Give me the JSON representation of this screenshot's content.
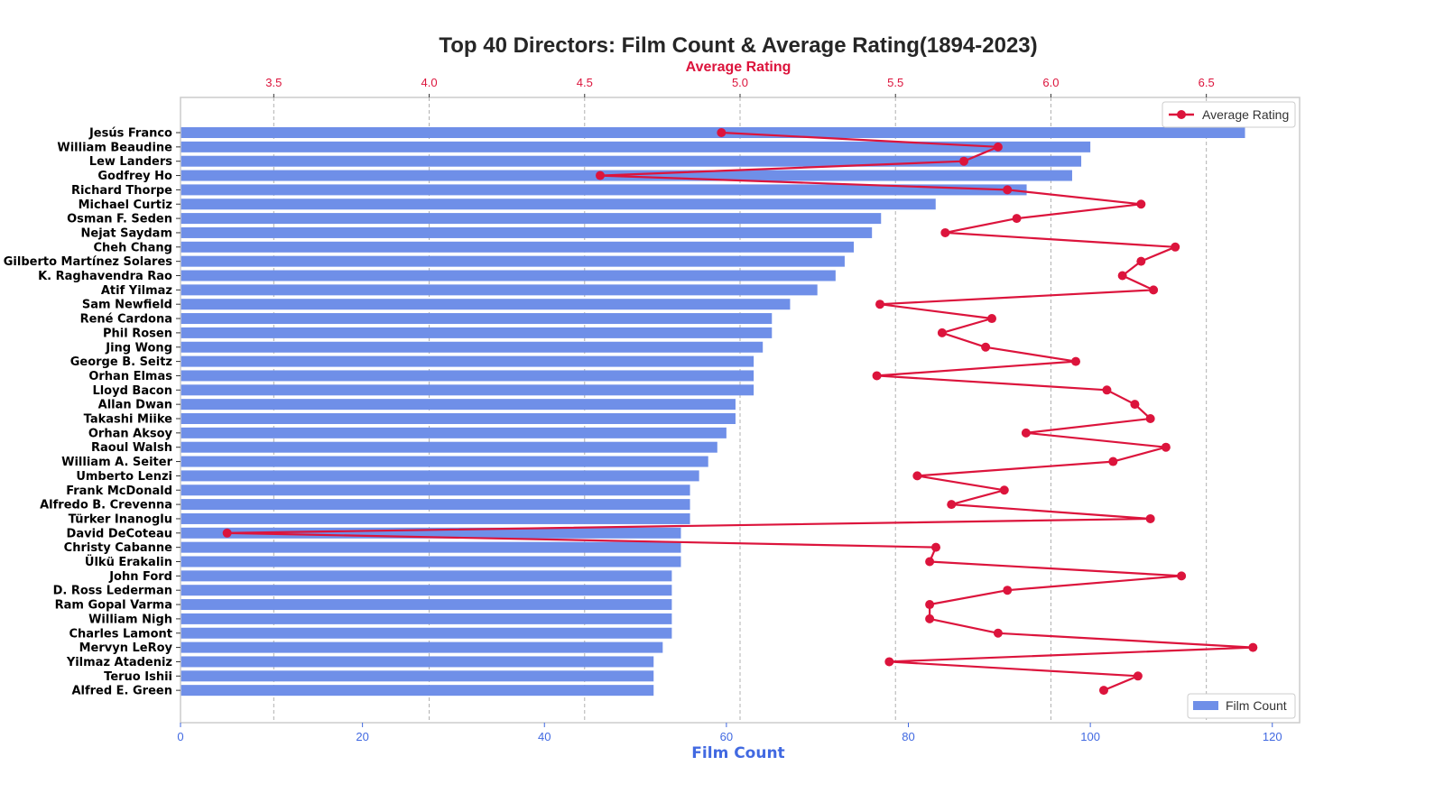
{
  "chart_data": {
    "type": "bar",
    "title": "Top 40 Directors: Film Count & Average Rating(1894-2023)",
    "xlabel": "Film Count",
    "x2label": "Average Rating",
    "xlim": [
      0,
      123
    ],
    "x2lim": [
      3.2,
      6.8
    ],
    "xticks": [
      0,
      20,
      40,
      60,
      80,
      100,
      120
    ],
    "x2ticks": [
      "3.5",
      "4.0",
      "4.5",
      "5.0",
      "5.5",
      "6.0",
      "6.5"
    ],
    "grid": "vertical, dashed, top axis",
    "categories": [
      "Jesús Franco",
      "William Beaudine",
      "Lew Landers",
      "Godfrey Ho",
      "Richard Thorpe",
      "Michael Curtiz",
      "Osman F. Seden",
      "Nejat Saydam",
      "Cheh Chang",
      "Gilberto Martínez Solares",
      "K. Raghavendra Rao",
      "Atif Yilmaz",
      "Sam Newfield",
      "René Cardona",
      "Phil Rosen",
      "Jing Wong",
      "George B. Seitz",
      "Orhan Elmas",
      "Lloyd Bacon",
      "Allan Dwan",
      "Takashi Miike",
      "Orhan Aksoy",
      "Raoul Walsh",
      "William A. Seiter",
      "Umberto Lenzi",
      "Frank McDonald",
      "Alfredo B. Crevenna",
      "Türker Inanoglu",
      "David DeCoteau",
      "Christy Cabanne",
      "Ülkü Erakalin",
      "John Ford",
      "D. Ross Lederman",
      "Ram Gopal Varma",
      "William Nigh",
      "Charles Lamont",
      "Mervyn LeRoy",
      "Yilmaz Atadeniz",
      "Teruo Ishii",
      "Alfred E. Green"
    ],
    "series": [
      {
        "name": "Film Count",
        "axis": "bottom",
        "kind": "bar",
        "color": "#6f8fe8",
        "values": [
          117,
          100,
          99,
          98,
          93,
          83,
          77,
          76,
          74,
          73,
          72,
          70,
          67,
          65,
          65,
          64,
          63,
          63,
          63,
          61,
          61,
          60,
          59,
          58,
          57,
          56,
          56,
          56,
          55,
          55,
          55,
          54,
          54,
          54,
          54,
          54,
          53,
          52,
          52,
          52
        ]
      },
      {
        "name": "Average Rating",
        "axis": "top",
        "kind": "line",
        "color": "#dc143c",
        "values": [
          4.94,
          5.83,
          5.72,
          4.55,
          5.86,
          6.29,
          5.89,
          5.66,
          6.4,
          6.29,
          6.23,
          6.33,
          5.45,
          5.81,
          5.65,
          5.79,
          6.08,
          5.44,
          6.18,
          6.27,
          6.32,
          5.92,
          6.37,
          6.2,
          5.57,
          5.85,
          5.68,
          6.32,
          3.35,
          5.63,
          5.61,
          6.42,
          5.86,
          5.61,
          5.61,
          5.83,
          6.65,
          5.48,
          6.28,
          6.17
        ]
      }
    ],
    "legends": [
      {
        "label": "Average Rating",
        "position": "top-right"
      },
      {
        "label": "Film Count",
        "position": "bottom-right"
      }
    ]
  }
}
